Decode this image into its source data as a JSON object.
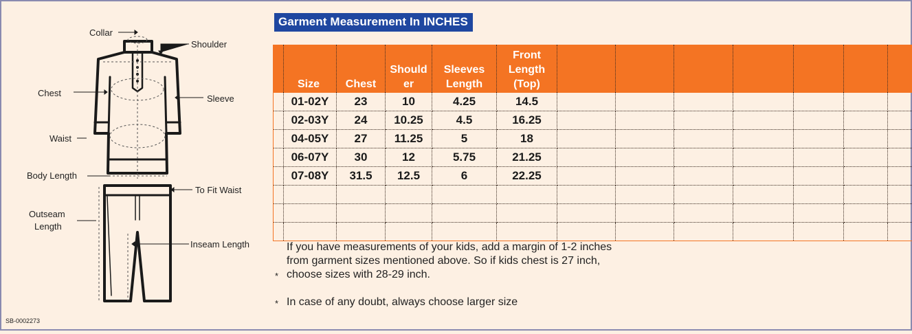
{
  "title": "Garment Measurement In INCHES",
  "diagram_labels": {
    "collar": "Collar",
    "shoulder": "Shoulder",
    "chest": "Chest",
    "sleeve": "Sleeve",
    "waist": "Waist",
    "body_length": "Body Length",
    "to_fit_waist": "To Fit Waist",
    "outseam_line1": "Outseam",
    "outseam_line2": "Length",
    "inseam": "Inseam Length"
  },
  "product_code": "SB-0002273",
  "table": {
    "headers": [
      "Size",
      "Chest",
      "Should er",
      "Sleeves Length",
      "Front Length (Top)",
      "",
      "",
      "",
      "",
      "",
      "",
      "",
      ""
    ],
    "header_lines": [
      [
        "Size"
      ],
      [
        "Chest"
      ],
      [
        "Should",
        "er"
      ],
      [
        "Sleeves",
        "Length"
      ],
      [
        "Front",
        "Length",
        "(Top)"
      ]
    ],
    "rows": [
      [
        "01-02Y",
        "23",
        "10",
        "4.25",
        "14.5"
      ],
      [
        "02-03Y",
        "24",
        "10.25",
        "4.5",
        "16.25"
      ],
      [
        "04-05Y",
        "27",
        "11.25",
        "5",
        "18"
      ],
      [
        "06-07Y",
        "30",
        "12",
        "5.75",
        "21.25"
      ],
      [
        "07-08Y",
        "31.5",
        "12.5",
        "6",
        "22.25"
      ],
      [
        "",
        "",
        "",
        "",
        ""
      ],
      [
        "",
        "",
        "",
        "",
        ""
      ],
      [
        "",
        "",
        "",
        "",
        ""
      ]
    ]
  },
  "notes": {
    "bullet": "*",
    "note1": "If you have measurements of your kids, add a margin of 1-2 inches from garment sizes mentioned above. So if kids chest is 27 inch, choose sizes with 28-29 inch.",
    "note2": "In case of any doubt, always choose larger size"
  },
  "colors": {
    "header_orange": "#f47423",
    "title_blue": "#1f47a0",
    "background": "#fdf0e3"
  }
}
